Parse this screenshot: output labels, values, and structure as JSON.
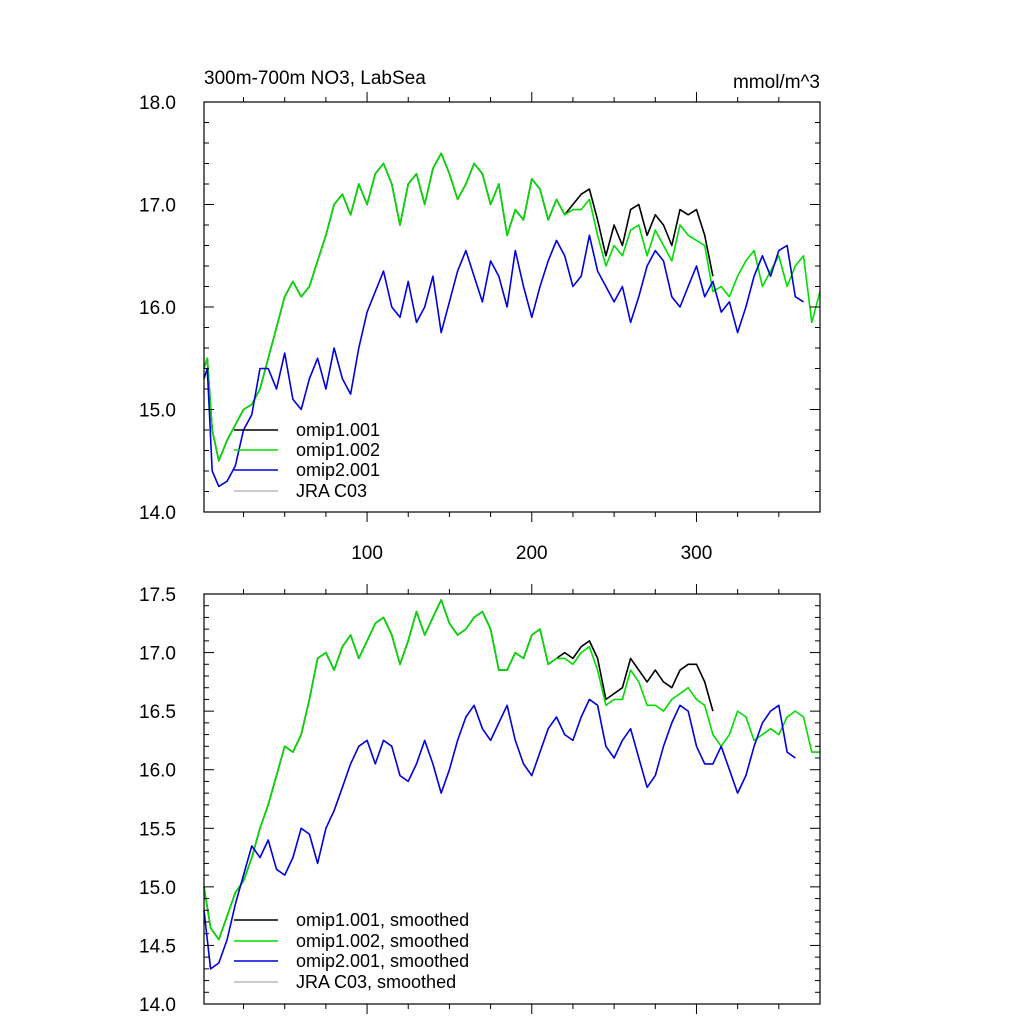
{
  "chart_data": [
    {
      "type": "line",
      "title": "300m-700m NO3, LabSea",
      "units": "mmol/m^3",
      "xlim": [
        1,
        375
      ],
      "ylim": [
        14.0,
        18.0
      ],
      "x_ticks": [
        100,
        200,
        300
      ],
      "x_tick_labels": [
        "100",
        "200",
        "300"
      ],
      "y_ticks": [
        14.0,
        15.0,
        16.0,
        17.0,
        18.0
      ],
      "y_tick_labels": [
        "14.0",
        "15.0",
        "16.0",
        "17.0",
        "18.0"
      ],
      "legend": {
        "placement": "bottom-left",
        "entries": [
          "omip1.001",
          "omip1.002",
          "omip2.001",
          "JRA C03"
        ]
      },
      "series": [
        {
          "name": "omip1.001",
          "color": "#000000",
          "x": [
            1,
            3,
            6,
            10,
            15,
            20,
            25,
            30,
            35,
            40,
            45,
            50,
            55,
            60,
            65,
            70,
            75,
            80,
            85,
            90,
            95,
            100,
            105,
            110,
            115,
            120,
            125,
            130,
            135,
            140,
            145,
            150,
            155,
            160,
            165,
            170,
            175,
            180,
            185,
            190,
            195,
            200,
            205,
            210,
            215,
            220,
            225,
            230,
            235,
            240,
            245,
            250,
            255,
            260,
            265,
            270,
            275,
            280,
            285,
            290,
            295,
            300,
            305,
            310
          ],
          "y": [
            15.4,
            15.5,
            14.8,
            14.5,
            14.7,
            14.85,
            15.0,
            15.05,
            15.2,
            15.5,
            15.8,
            16.1,
            16.25,
            16.1,
            16.2,
            16.45,
            16.7,
            17.0,
            17.1,
            16.9,
            17.2,
            17.0,
            17.3,
            17.4,
            17.2,
            16.8,
            17.2,
            17.3,
            17.0,
            17.35,
            17.5,
            17.3,
            17.05,
            17.2,
            17.4,
            17.3,
            17.0,
            17.2,
            16.7,
            16.95,
            16.85,
            17.25,
            17.15,
            16.85,
            17.05,
            16.9,
            17.0,
            17.1,
            17.15,
            16.85,
            16.5,
            16.8,
            16.6,
            16.95,
            17.0,
            16.7,
            16.9,
            16.8,
            16.6,
            16.95,
            16.9,
            16.95,
            16.7,
            16.3
          ]
        },
        {
          "name": "omip1.002",
          "color": "#00dd00",
          "x": [
            1,
            3,
            6,
            10,
            15,
            20,
            25,
            30,
            35,
            40,
            45,
            50,
            55,
            60,
            65,
            70,
            75,
            80,
            85,
            90,
            95,
            100,
            105,
            110,
            115,
            120,
            125,
            130,
            135,
            140,
            145,
            150,
            155,
            160,
            165,
            170,
            175,
            180,
            185,
            190,
            195,
            200,
            205,
            210,
            215,
            220,
            225,
            230,
            235,
            240,
            245,
            250,
            255,
            260,
            265,
            270,
            275,
            280,
            285,
            290,
            295,
            300,
            305,
            310,
            315,
            320,
            325,
            330,
            335,
            340,
            345,
            350,
            355,
            360,
            365,
            370,
            375
          ],
          "y": [
            15.4,
            15.5,
            14.8,
            14.5,
            14.7,
            14.85,
            15.0,
            15.05,
            15.2,
            15.5,
            15.8,
            16.1,
            16.25,
            16.1,
            16.2,
            16.45,
            16.7,
            17.0,
            17.1,
            16.9,
            17.2,
            17.0,
            17.3,
            17.4,
            17.2,
            16.8,
            17.2,
            17.3,
            17.0,
            17.35,
            17.5,
            17.3,
            17.05,
            17.2,
            17.4,
            17.3,
            17.0,
            17.2,
            16.7,
            16.95,
            16.85,
            17.25,
            17.15,
            16.85,
            17.05,
            16.9,
            16.95,
            16.95,
            17.05,
            16.7,
            16.4,
            16.6,
            16.5,
            16.75,
            16.8,
            16.5,
            16.75,
            16.6,
            16.45,
            16.8,
            16.7,
            16.65,
            16.6,
            16.15,
            16.2,
            16.1,
            16.3,
            16.45,
            16.55,
            16.2,
            16.35,
            16.5,
            16.2,
            16.4,
            16.5,
            15.85,
            16.15
          ]
        },
        {
          "name": "omip2.001",
          "color": "#0000dd",
          "x": [
            1,
            3,
            6,
            10,
            15,
            20,
            25,
            30,
            35,
            40,
            45,
            50,
            55,
            60,
            65,
            70,
            75,
            80,
            85,
            90,
            95,
            100,
            105,
            110,
            115,
            120,
            125,
            130,
            135,
            140,
            145,
            150,
            155,
            160,
            165,
            170,
            175,
            180,
            185,
            190,
            195,
            200,
            205,
            210,
            215,
            220,
            225,
            230,
            235,
            240,
            245,
            250,
            255,
            260,
            265,
            270,
            275,
            280,
            285,
            290,
            295,
            300,
            305,
            310,
            315,
            320,
            325,
            330,
            335,
            340,
            345,
            350,
            355,
            360,
            365
          ],
          "y": [
            15.3,
            15.4,
            14.4,
            14.25,
            14.3,
            14.45,
            14.8,
            14.95,
            15.4,
            15.4,
            15.2,
            15.55,
            15.1,
            15.0,
            15.3,
            15.5,
            15.2,
            15.6,
            15.3,
            15.15,
            15.6,
            15.95,
            16.15,
            16.35,
            16.0,
            15.9,
            16.25,
            15.85,
            16.0,
            16.3,
            15.75,
            16.05,
            16.35,
            16.55,
            16.3,
            16.05,
            16.45,
            16.3,
            16.0,
            16.55,
            16.2,
            15.9,
            16.2,
            16.45,
            16.65,
            16.5,
            16.2,
            16.3,
            16.7,
            16.35,
            16.2,
            16.05,
            16.2,
            15.85,
            16.1,
            16.4,
            16.55,
            16.45,
            16.1,
            16.0,
            16.2,
            16.4,
            16.1,
            16.25,
            15.95,
            16.05,
            15.75,
            16.0,
            16.3,
            16.5,
            16.3,
            16.55,
            16.6,
            16.1,
            16.05
          ]
        },
        {
          "name": "JRA C03",
          "color": "#bbbbbb",
          "x": [],
          "y": []
        }
      ]
    },
    {
      "type": "line",
      "xlim": [
        1,
        375
      ],
      "ylim": [
        14.0,
        17.5
      ],
      "x_ticks": [
        100,
        200,
        300
      ],
      "y_ticks": [
        14.0,
        14.5,
        15.0,
        15.5,
        16.0,
        16.5,
        17.0,
        17.5
      ],
      "y_tick_labels": [
        "14.0",
        "14.5",
        "15.0",
        "15.5",
        "16.0",
        "16.5",
        "17.0",
        "17.5"
      ],
      "legend": {
        "placement": "bottom-left",
        "entries": [
          "omip1.001, smoothed",
          "omip1.002, smoothed",
          "omip2.001, smoothed",
          "JRA C03, smoothed"
        ]
      },
      "series": [
        {
          "name": "omip1.001, smoothed",
          "color": "#000000",
          "x": [
            1,
            5,
            10,
            15,
            20,
            25,
            30,
            35,
            40,
            45,
            50,
            55,
            60,
            65,
            70,
            75,
            80,
            85,
            90,
            95,
            100,
            105,
            110,
            115,
            120,
            125,
            130,
            135,
            140,
            145,
            150,
            155,
            160,
            165,
            170,
            175,
            180,
            185,
            190,
            195,
            200,
            205,
            210,
            215,
            220,
            225,
            230,
            235,
            240,
            245,
            250,
            255,
            260,
            265,
            270,
            275,
            280,
            285,
            290,
            295,
            300,
            305,
            310
          ],
          "y": [
            15.0,
            14.65,
            14.55,
            14.75,
            14.95,
            15.05,
            15.25,
            15.5,
            15.7,
            15.95,
            16.2,
            16.15,
            16.3,
            16.6,
            16.95,
            17.0,
            16.85,
            17.05,
            17.15,
            16.95,
            17.1,
            17.25,
            17.3,
            17.15,
            16.9,
            17.1,
            17.35,
            17.15,
            17.3,
            17.45,
            17.25,
            17.15,
            17.2,
            17.3,
            17.35,
            17.2,
            16.85,
            16.85,
            17.0,
            16.95,
            17.15,
            17.2,
            16.9,
            16.95,
            17.0,
            16.95,
            17.05,
            17.1,
            16.95,
            16.6,
            16.65,
            16.7,
            16.95,
            16.85,
            16.75,
            16.85,
            16.75,
            16.7,
            16.85,
            16.9,
            16.9,
            16.75,
            16.5
          ]
        },
        {
          "name": "omip1.002, smoothed",
          "color": "#00dd00",
          "x": [
            1,
            5,
            10,
            15,
            20,
            25,
            30,
            35,
            40,
            45,
            50,
            55,
            60,
            65,
            70,
            75,
            80,
            85,
            90,
            95,
            100,
            105,
            110,
            115,
            120,
            125,
            130,
            135,
            140,
            145,
            150,
            155,
            160,
            165,
            170,
            175,
            180,
            185,
            190,
            195,
            200,
            205,
            210,
            215,
            220,
            225,
            230,
            235,
            240,
            245,
            250,
            255,
            260,
            265,
            270,
            275,
            280,
            285,
            290,
            295,
            300,
            305,
            310,
            315,
            320,
            325,
            330,
            335,
            340,
            345,
            350,
            355,
            360,
            365,
            370,
            375
          ],
          "y": [
            15.0,
            14.65,
            14.55,
            14.75,
            14.95,
            15.05,
            15.25,
            15.5,
            15.7,
            15.95,
            16.2,
            16.15,
            16.3,
            16.6,
            16.95,
            17.0,
            16.85,
            17.05,
            17.15,
            16.95,
            17.1,
            17.25,
            17.3,
            17.15,
            16.9,
            17.1,
            17.35,
            17.15,
            17.3,
            17.45,
            17.25,
            17.15,
            17.2,
            17.3,
            17.35,
            17.2,
            16.85,
            16.85,
            17.0,
            16.95,
            17.15,
            17.2,
            16.9,
            16.95,
            16.95,
            16.9,
            17.0,
            17.05,
            16.85,
            16.55,
            16.6,
            16.6,
            16.85,
            16.75,
            16.55,
            16.55,
            16.5,
            16.6,
            16.65,
            16.7,
            16.6,
            16.55,
            16.3,
            16.2,
            16.3,
            16.5,
            16.45,
            16.25,
            16.3,
            16.35,
            16.3,
            16.45,
            16.5,
            16.45,
            16.15,
            16.15
          ]
        },
        {
          "name": "omip2.001, smoothed",
          "color": "#0000dd",
          "x": [
            1,
            5,
            10,
            15,
            20,
            25,
            30,
            35,
            40,
            45,
            50,
            55,
            60,
            65,
            70,
            75,
            80,
            85,
            90,
            95,
            100,
            105,
            110,
            115,
            120,
            125,
            130,
            135,
            140,
            145,
            150,
            155,
            160,
            165,
            170,
            175,
            180,
            185,
            190,
            195,
            200,
            205,
            210,
            215,
            220,
            225,
            230,
            235,
            240,
            245,
            250,
            255,
            260,
            265,
            270,
            275,
            280,
            285,
            290,
            295,
            300,
            305,
            310,
            315,
            320,
            325,
            330,
            335,
            340,
            345,
            350,
            355,
            360
          ],
          "y": [
            14.8,
            14.3,
            14.35,
            14.55,
            14.85,
            15.1,
            15.35,
            15.25,
            15.4,
            15.15,
            15.1,
            15.25,
            15.5,
            15.45,
            15.2,
            15.5,
            15.65,
            15.85,
            16.05,
            16.2,
            16.25,
            16.05,
            16.25,
            16.2,
            15.95,
            15.9,
            16.05,
            16.25,
            16.05,
            15.8,
            16.0,
            16.25,
            16.45,
            16.55,
            16.35,
            16.25,
            16.4,
            16.55,
            16.25,
            16.05,
            15.95,
            16.15,
            16.35,
            16.45,
            16.3,
            16.25,
            16.45,
            16.6,
            16.55,
            16.2,
            16.1,
            16.25,
            16.35,
            16.1,
            15.85,
            15.95,
            16.2,
            16.4,
            16.55,
            16.5,
            16.2,
            16.05,
            16.05,
            16.2,
            16.0,
            15.8,
            15.95,
            16.2,
            16.4,
            16.5,
            16.55,
            16.15,
            16.1
          ]
        },
        {
          "name": "JRA C03, smoothed",
          "color": "#bbbbbb",
          "x": [],
          "y": []
        }
      ]
    }
  ]
}
